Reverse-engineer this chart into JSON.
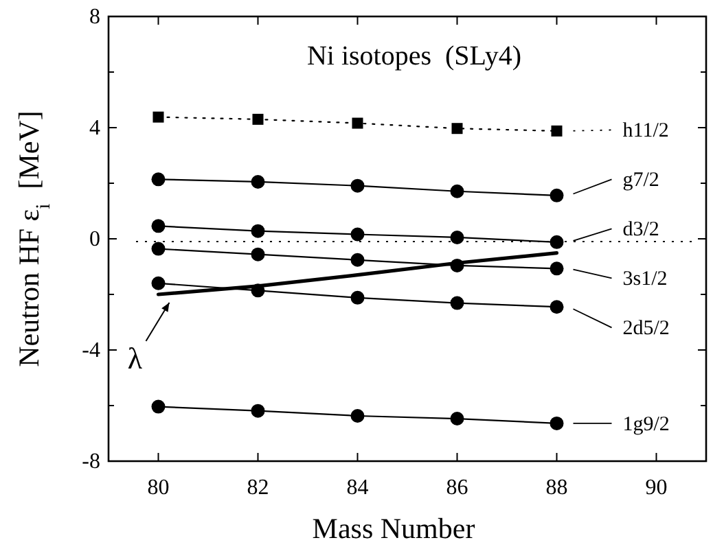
{
  "chart_data": {
    "type": "line",
    "title": "Ni isotopes  (SLy4)",
    "xlabel": "Mass Number",
    "ylabel": "Neutron HF ε$_{i}$  [MeV]",
    "x": [
      80,
      82,
      84,
      86,
      88
    ],
    "xlim": [
      79,
      91
    ],
    "xticks": [
      80,
      82,
      84,
      86,
      88,
      90
    ],
    "ylim": [
      -8,
      8
    ],
    "yticks": [
      -8,
      {
        "value": -6,
        "label": null
      },
      -4,
      {
        "value": -2,
        "label": null
      },
      0,
      {
        "value": 2,
        "label": null
      },
      4,
      {
        "value": 6,
        "label": null
      },
      8
    ],
    "grid": false,
    "legend": "right",
    "ref_lines": [
      {
        "axis": "y",
        "value": -0.1,
        "line_style": "dotted",
        "color": "#000000"
      }
    ],
    "series": [
      {
        "name": "h11/2",
        "color": "#000000",
        "marker": "square",
        "line_style": "dotted",
        "values": [
          4.38,
          4.3,
          4.16,
          3.97,
          3.88
        ]
      },
      {
        "name": "g7/2",
        "color": "#000000",
        "marker": "circle",
        "line_style": "solid",
        "values": [
          2.14,
          2.05,
          1.91,
          1.71,
          1.56
        ]
      },
      {
        "name": "d3/2",
        "color": "#000000",
        "marker": "circle",
        "line_style": "solid",
        "values": [
          0.46,
          0.28,
          0.16,
          0.05,
          -0.12
        ]
      },
      {
        "name": "3s1/2",
        "color": "#000000",
        "marker": "circle",
        "line_style": "solid",
        "values": [
          -0.36,
          -0.56,
          -0.76,
          -0.96,
          -1.07
        ]
      },
      {
        "name": "2d5/2",
        "color": "#000000",
        "marker": "circle",
        "line_style": "solid",
        "values": [
          -1.6,
          -1.86,
          -2.12,
          -2.31,
          -2.45
        ]
      },
      {
        "name": "1g9/2",
        "color": "#000000",
        "marker": "circle",
        "line_style": "solid",
        "values": [
          -6.04,
          -6.19,
          -6.37,
          -6.47,
          -6.64
        ]
      },
      {
        "name": "λ",
        "color": "#000000",
        "marker": "none",
        "line_style": "solid",
        "values": [
          -2.0,
          -1.7,
          -1.3,
          -0.87,
          -0.51
        ]
      }
    ]
  }
}
